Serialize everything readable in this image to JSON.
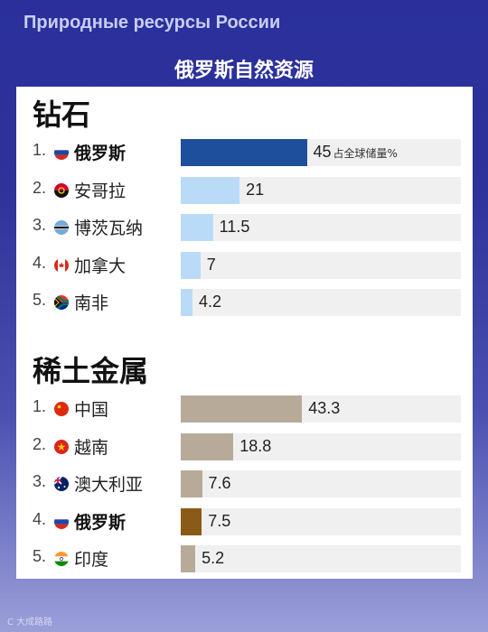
{
  "header": {
    "title_ru": "Природные ресурсы России",
    "title_zh": "俄罗斯自然资源"
  },
  "watermark": "C 大成路路",
  "chart_data": [
    {
      "type": "bar",
      "title": "钻石",
      "value_unit": "占全球储量%",
      "xlim": [
        0,
        100
      ],
      "categories": [
        "俄罗斯",
        "安哥拉",
        "博茨瓦纳",
        "加拿大",
        "南非"
      ],
      "ranks": [
        "1.",
        "2.",
        "3.",
        "4.",
        "5."
      ],
      "values": [
        45,
        21,
        11.5,
        7,
        4.2
      ],
      "value_labels": [
        "45",
        "21",
        "11.5",
        "7",
        "4.2"
      ],
      "highlight": [
        "俄罗斯"
      ],
      "flags": [
        "russia-flag-icon",
        "angola-flag-icon",
        "botswana-flag-icon",
        "canada-flag-icon",
        "south-africa-flag-icon"
      ],
      "bar_color": "#b9dbf8",
      "highlight_color": "#1d4f9c"
    },
    {
      "type": "bar",
      "title": "稀土金属",
      "xlim": [
        0,
        100
      ],
      "categories": [
        "中国",
        "越南",
        "澳大利亚",
        "俄罗斯",
        "印度"
      ],
      "ranks": [
        "1.",
        "2.",
        "3.",
        "4.",
        "5."
      ],
      "values": [
        43.3,
        18.8,
        7.6,
        7.5,
        5.2
      ],
      "value_labels": [
        "43.3",
        "18.8",
        "7.6",
        "7.5",
        "5.2"
      ],
      "highlight": [
        "俄罗斯"
      ],
      "flags": [
        "china-flag-icon",
        "vietnam-flag-icon",
        "australia-flag-icon",
        "russia-flag-icon",
        "india-flag-icon"
      ],
      "bar_color": "#b8aa99",
      "highlight_color": "#8a5a17"
    }
  ]
}
